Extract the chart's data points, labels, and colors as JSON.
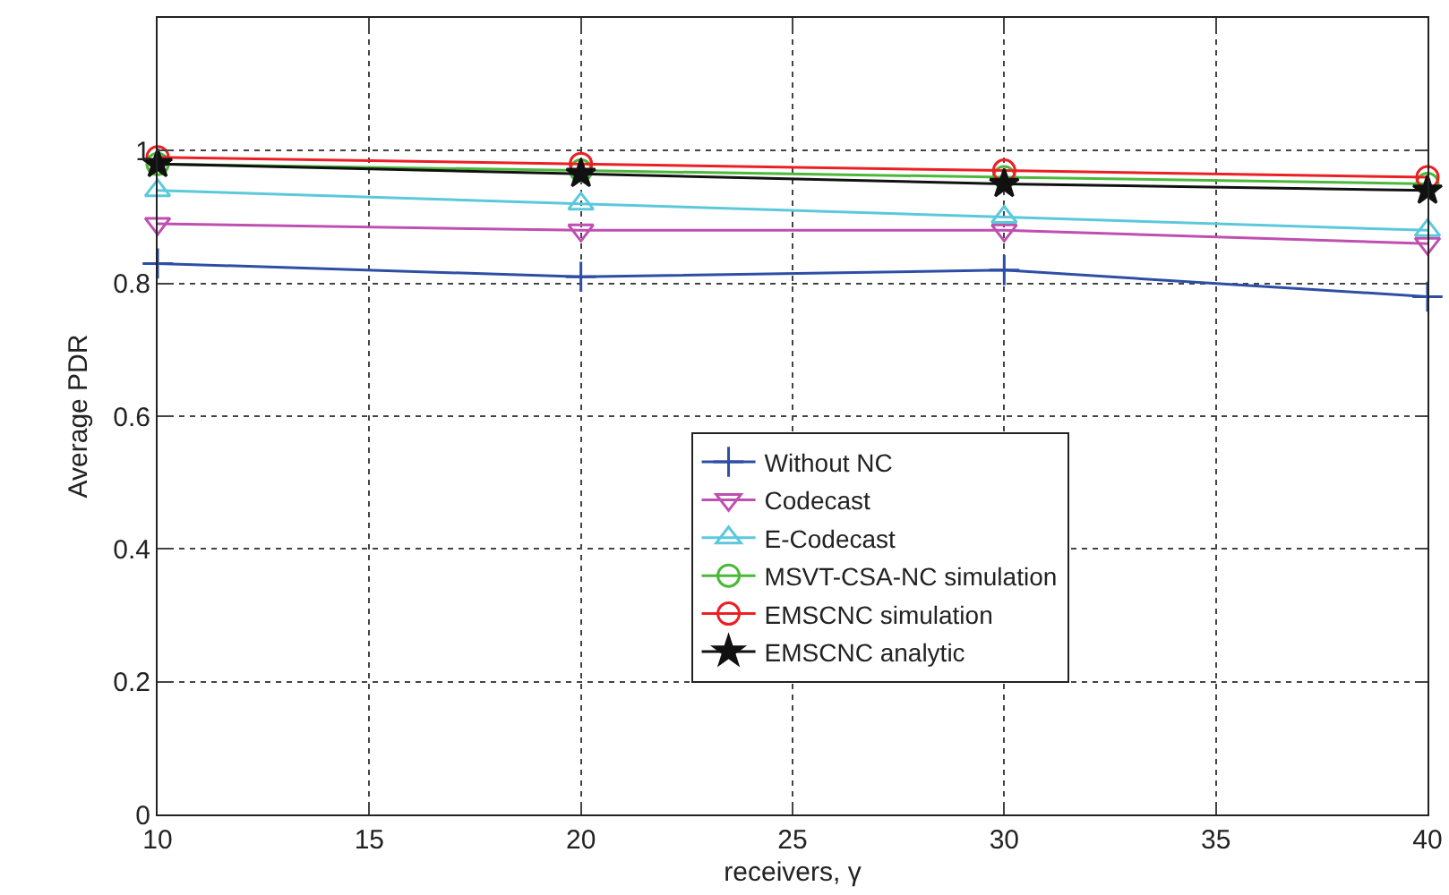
{
  "chart_data": {
    "type": "line",
    "xlabel": "receivers, γ",
    "ylabel": "Average PDR",
    "x": [
      10,
      20,
      30,
      40
    ],
    "xlim": [
      10,
      40
    ],
    "xticks": [
      10,
      15,
      20,
      25,
      30,
      35,
      40
    ],
    "ylim": [
      0,
      1.2
    ],
    "yticks": [
      0,
      0.2,
      0.4,
      0.6,
      0.8,
      1
    ],
    "grid": true,
    "legend": "bottom right",
    "line_style": "solid",
    "series": [
      {
        "name": "Without NC",
        "color": "#2e4ea6",
        "marker": "cross",
        "values": [
          0.83,
          0.81,
          0.82,
          0.78
        ]
      },
      {
        "name": "Codecast",
        "color": "#bf4fb0",
        "marker": "triangle-down",
        "values": [
          0.89,
          0.88,
          0.88,
          0.86
        ]
      },
      {
        "name": "E-Codecast",
        "color": "#5bc8dc",
        "marker": "triangle",
        "values": [
          0.94,
          0.92,
          0.9,
          0.88
        ]
      },
      {
        "name": "MSVT-CSA-NC simulation",
        "color": "#4cb83a",
        "marker": "circle",
        "values": [
          0.98,
          0.97,
          0.96,
          0.95
        ]
      },
      {
        "name": "EMSCNC simulation",
        "color": "#ec2024",
        "marker": "circle",
        "values": [
          0.99,
          0.98,
          0.97,
          0.96
        ]
      },
      {
        "name": "EMSCNC analytic",
        "color": "#111111",
        "marker": "star",
        "values": [
          0.98,
          0.965,
          0.95,
          0.94
        ]
      }
    ]
  }
}
